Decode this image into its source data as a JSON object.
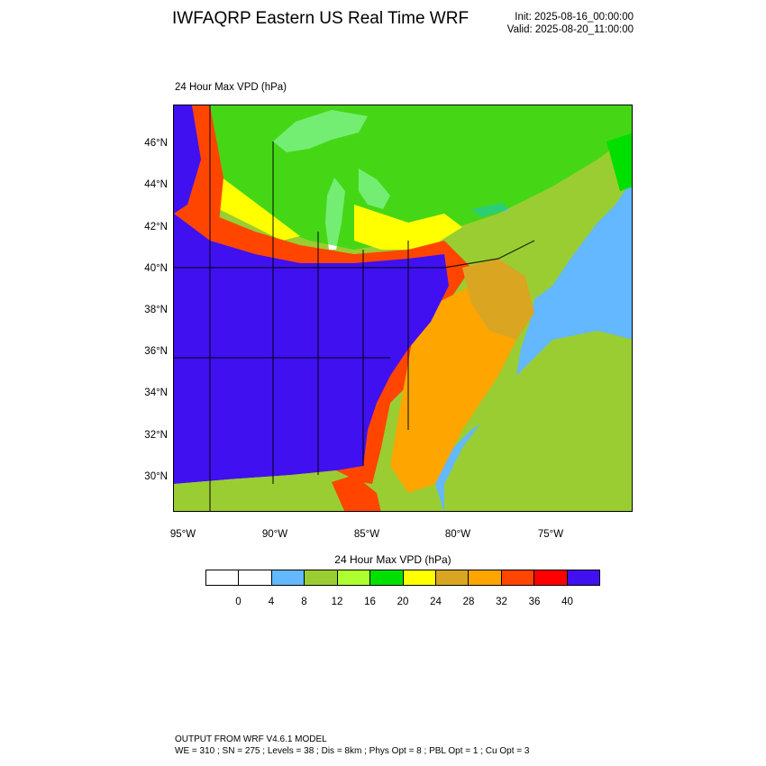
{
  "header": {
    "title": "IWFAQRP Eastern US Real Time WRF",
    "init": "Init: 2025-08-16_00:00:00",
    "valid": "Valid: 2025-08-20_11:00:00"
  },
  "field_label": "24 Hour Max VPD   (hPa)",
  "lat_labels": [
    "46°N",
    "44°N",
    "42°N",
    "40°N",
    "38°N",
    "36°N",
    "34°N",
    "32°N",
    "30°N"
  ],
  "lon_labels": [
    "95°W",
    "90°W",
    "85°W",
    "80°W",
    "75°W"
  ],
  "legend": {
    "title": "24 Hour Max VPD  (hPa)",
    "colors": [
      "#ffffff",
      "#ffffff",
      "#63b8ff",
      "#9acd32",
      "#adff2f",
      "#00e000",
      "#ffff00",
      "#daa520",
      "#ffa500",
      "#ff4500",
      "#ff0000",
      "#4010f0"
    ],
    "labels": [
      "0",
      "4",
      "8",
      "12",
      "16",
      "20",
      "24",
      "28",
      "32",
      "36",
      "40"
    ]
  },
  "footer": {
    "line1": "OUTPUT FROM WRF V4.6.1 MODEL",
    "line2": "WE = 310 ; SN = 275 ; Levels = 38 ; Dis = 8km ; Phys Opt = 8 ; PBL Opt = 1 ; Cu Opt = 3"
  }
}
